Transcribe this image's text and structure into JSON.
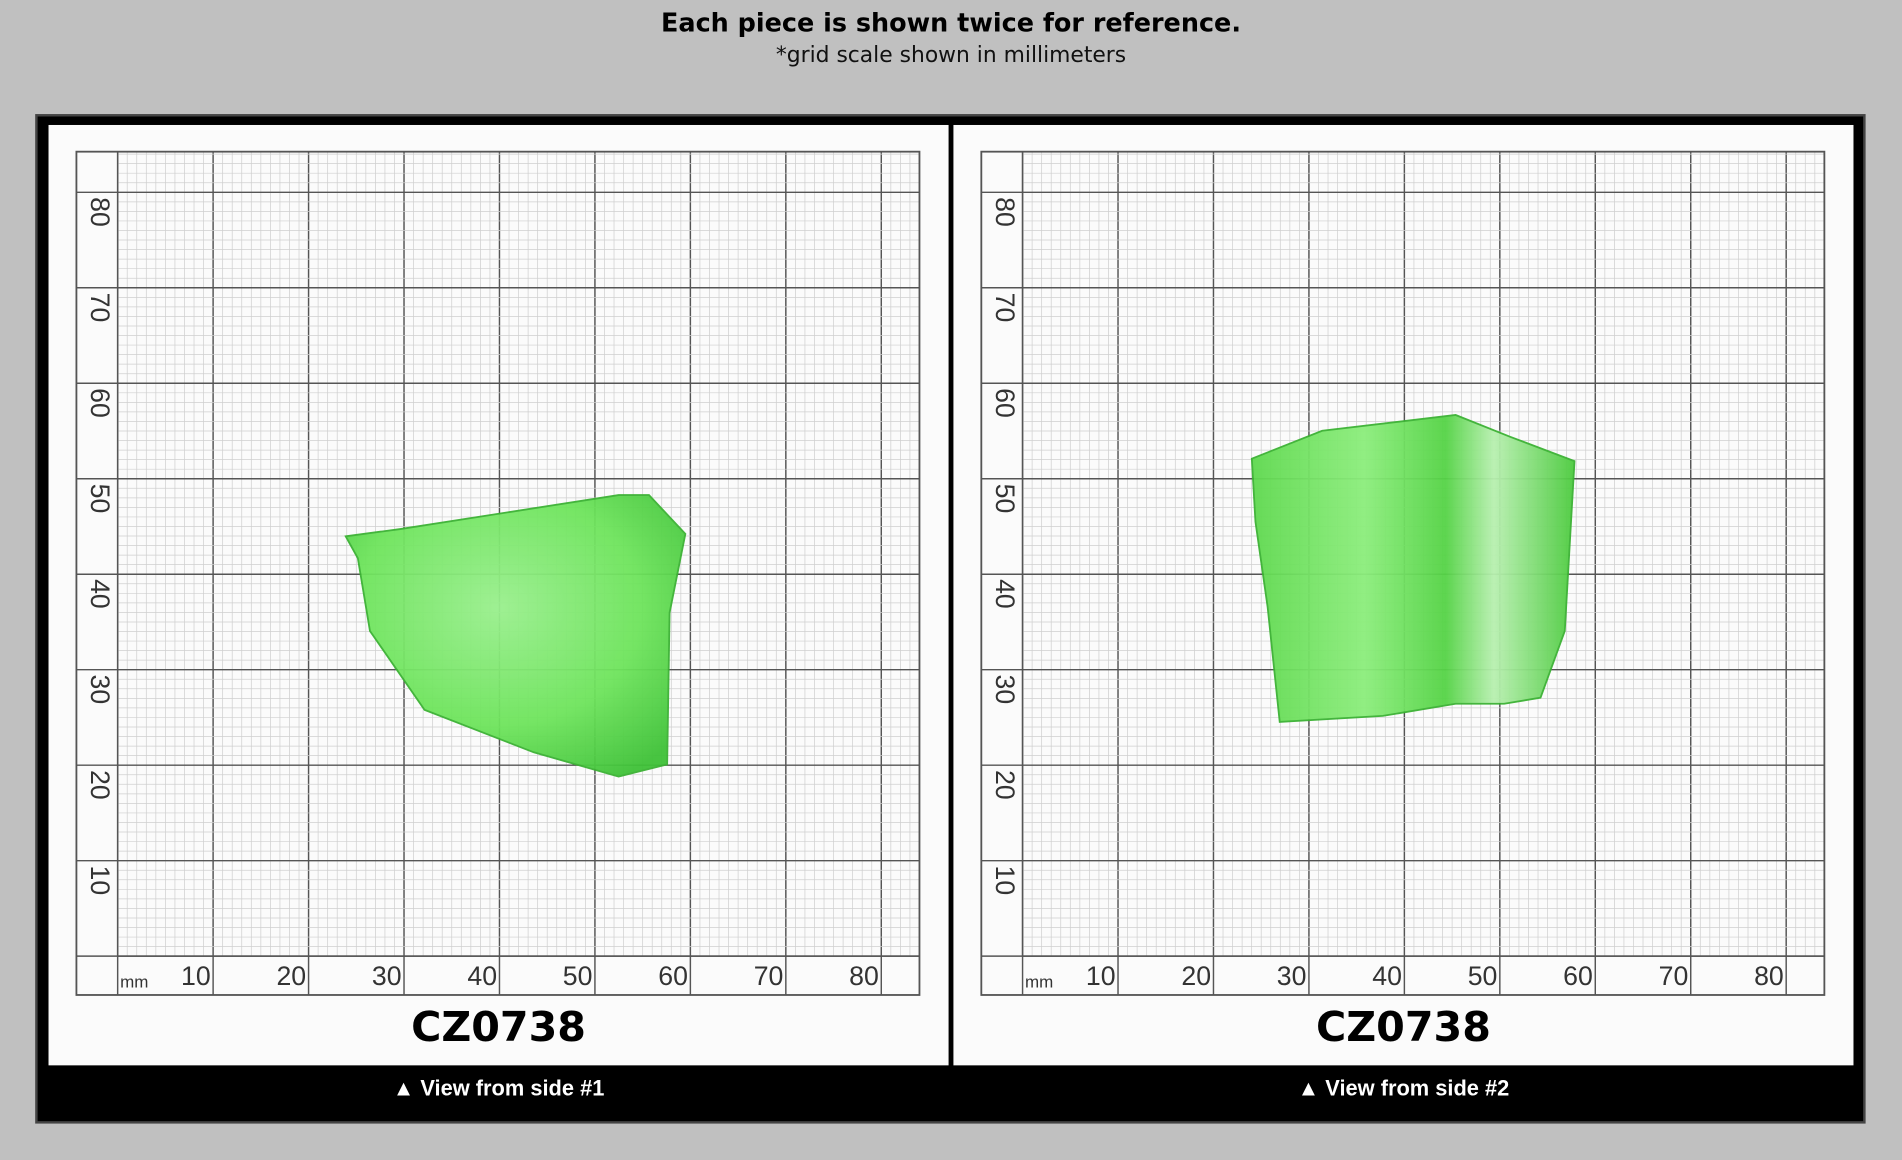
{
  "header": {
    "title": "Each piece is shown twice for reference.",
    "subtitle": "*grid scale shown in millimeters"
  },
  "panels": [
    {
      "unit": "mm",
      "x_labels": [
        10,
        20,
        30,
        40,
        50,
        60,
        70,
        80
      ],
      "y_labels": [
        10,
        20,
        30,
        40,
        50,
        60,
        70,
        80
      ],
      "code": "CZ0738",
      "caption": "▲ View from side #1"
    },
    {
      "unit": "mm",
      "x_labels": [
        10,
        20,
        30,
        40,
        50,
        60,
        70,
        80
      ],
      "y_labels": [
        10,
        20,
        30,
        40,
        50,
        60,
        70,
        80
      ],
      "code": "CZ0738",
      "caption": "▲ View from side #2"
    }
  ]
}
